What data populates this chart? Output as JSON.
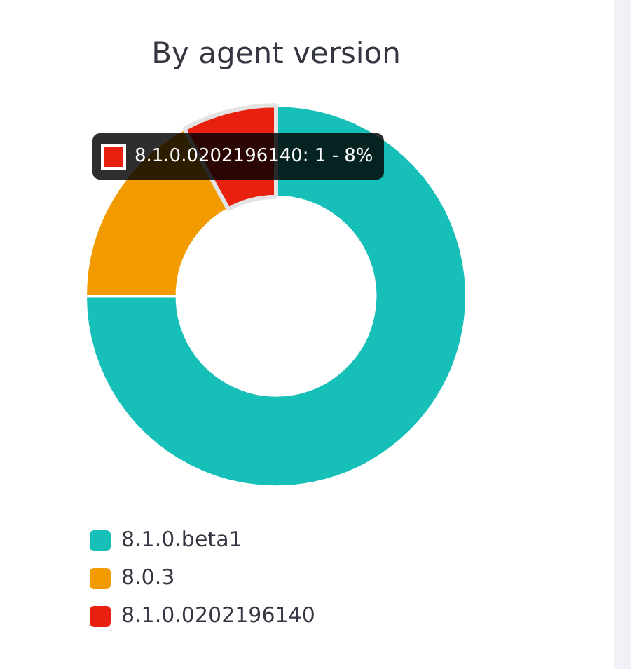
{
  "chart_data": {
    "type": "donut",
    "title": "By agent version",
    "categories": [
      "8.1.0.beta1",
      "8.0.3",
      "8.1.0.0202196140"
    ],
    "values": [
      75,
      17,
      8
    ],
    "colors": [
      "#16c0b8",
      "#f29b00",
      "#e8200f"
    ],
    "legend": "bottom left",
    "annotations": [
      {
        "text": "8.1.0.0202196140: 1 - 8%",
        "x": "8.1.0.0202196140"
      }
    ]
  }
}
